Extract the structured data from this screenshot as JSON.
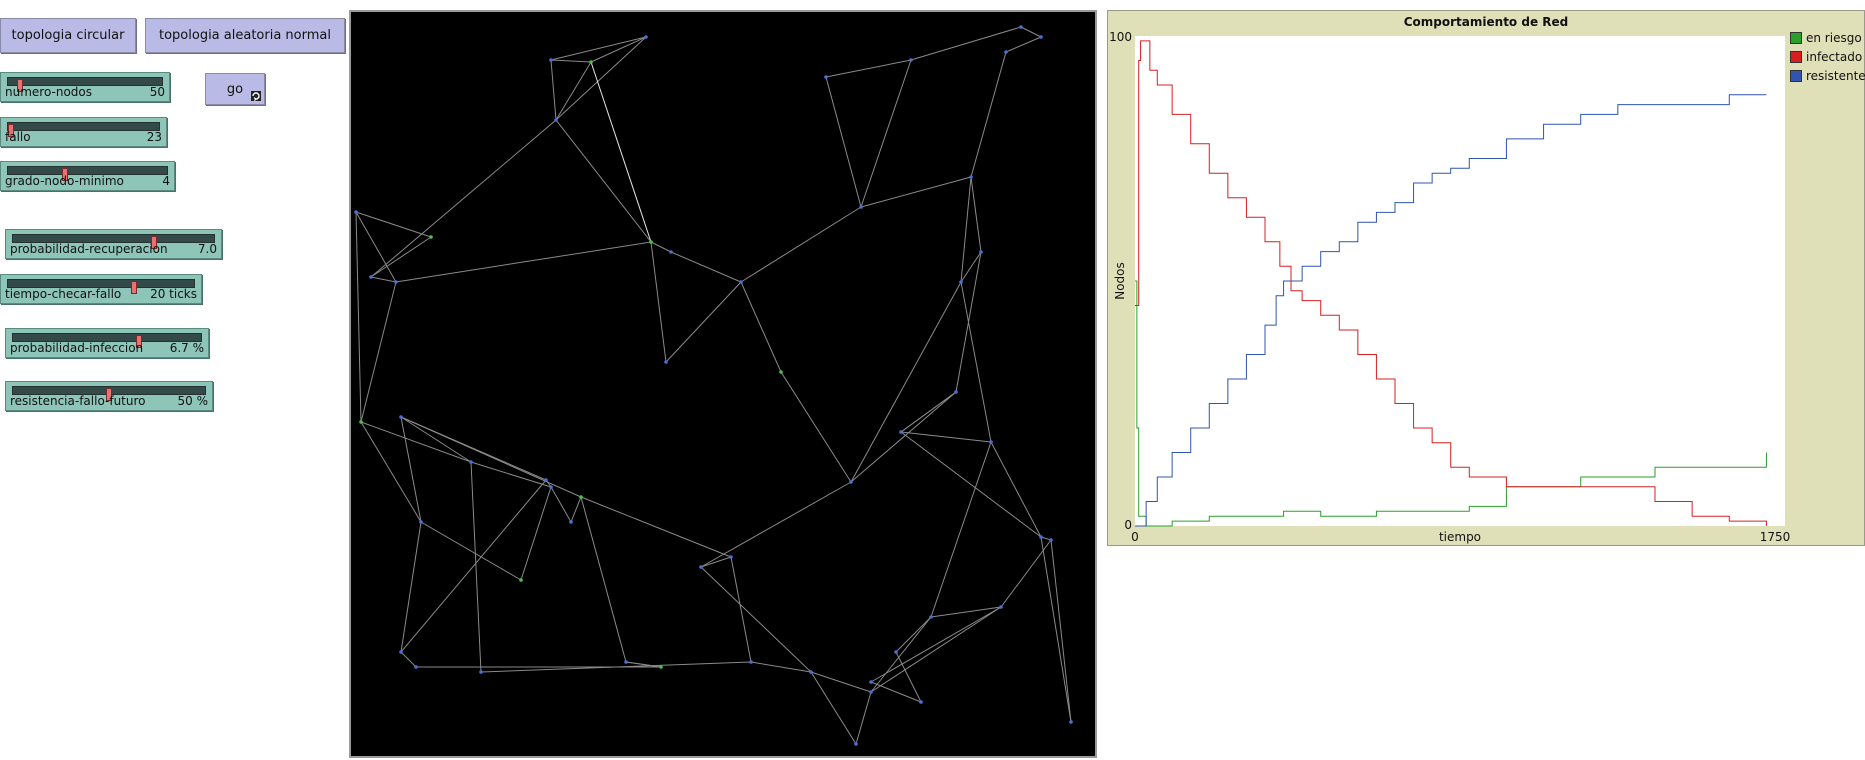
{
  "buttons": {
    "circular": "topologia circular",
    "random": "topologia aleatoria normal",
    "go": "go",
    "go_icon": "forever-loop-icon"
  },
  "sliders": [
    {
      "id": "numero-nodos",
      "label": "numero-nodos",
      "value": "50",
      "fraction": 0.08
    },
    {
      "id": "fallo",
      "label": "fallo",
      "value": "23",
      "fraction": 0.02
    },
    {
      "id": "grado-nodo-minimo",
      "label": "grado-nodo-minimo",
      "value": "4",
      "fraction": 0.36
    },
    {
      "id": "probabilidad-recuperacion",
      "label": "probabilidad-recuperacion",
      "value": "7.0",
      "fraction": 0.7
    },
    {
      "id": "tiempo-checar-fallo",
      "label": "tiempo-checar-fallo",
      "value": "20 ticks",
      "fraction": 0.68
    },
    {
      "id": "probabilidad-infeccion",
      "label": "probabilidad-infeccion",
      "value": "6.7 %",
      "fraction": 0.67
    },
    {
      "id": "resistencia-fallo-futuro",
      "label": "resistencia-fallo-futuro",
      "value": "50 %",
      "fraction": 0.5
    }
  ],
  "plot": {
    "title": "Comportamiento de Red",
    "ylabel": "Nodos",
    "xlabel": "tiempo",
    "xmin_label": "0",
    "xmax_label": "1750",
    "ymin_label": "0",
    "ymax_label": "100",
    "legend": [
      {
        "name": "en riesgo",
        "color": "#2aa02a"
      },
      {
        "name": "infectado",
        "color": "#d62020"
      },
      {
        "name": "resistente",
        "color": "#2f55b0"
      }
    ]
  },
  "chart_data": {
    "type": "line",
    "title": "Comportamiento de Red",
    "xlabel": "tiempo",
    "ylabel": "Nodos",
    "xlim": [
      0,
      1750
    ],
    "ylim": [
      0,
      100
    ],
    "legend_position": "right",
    "series": [
      {
        "name": "en riesgo",
        "color": "#2aa02a",
        "x": [
          0,
          5,
          10,
          30,
          100,
          200,
          300,
          400,
          500,
          550,
          650,
          800,
          900,
          1000,
          1100,
          1200,
          1400,
          1600,
          1700,
          1700
        ],
        "values": [
          50,
          20,
          2,
          0,
          1,
          2,
          2,
          3,
          2,
          2,
          3,
          3,
          4,
          8,
          8,
          10,
          12,
          12,
          12,
          15
        ]
      },
      {
        "name": "infectado",
        "color": "#d62020",
        "x": [
          0,
          10,
          15,
          40,
          60,
          100,
          150,
          200,
          250,
          300,
          350,
          390,
          420,
          450,
          500,
          550,
          600,
          650,
          700,
          750,
          800,
          850,
          900,
          1000,
          1100,
          1200,
          1300,
          1400,
          1500,
          1600,
          1700,
          1700
        ],
        "values": [
          45,
          95,
          99,
          93,
          90,
          84,
          78,
          72,
          67,
          63,
          58,
          53,
          48,
          46,
          43,
          40,
          35,
          30,
          25,
          20,
          17,
          12,
          10,
          8,
          8,
          8,
          8,
          5,
          2,
          1,
          1,
          0
        ]
      },
      {
        "name": "resistente",
        "color": "#2f55b0",
        "x": [
          0,
          10,
          30,
          60,
          100,
          150,
          200,
          250,
          300,
          350,
          380,
          400,
          450,
          500,
          550,
          600,
          650,
          700,
          750,
          800,
          850,
          900,
          1000,
          1100,
          1200,
          1300,
          1400,
          1500,
          1600,
          1700
        ],
        "values": [
          0,
          0,
          5,
          10,
          15,
          20,
          25,
          30,
          35,
          41,
          47,
          50,
          53,
          56,
          58,
          62,
          64,
          66,
          70,
          72,
          73,
          75,
          79,
          82,
          84,
          86,
          86,
          86,
          88,
          88
        ]
      }
    ]
  }
}
